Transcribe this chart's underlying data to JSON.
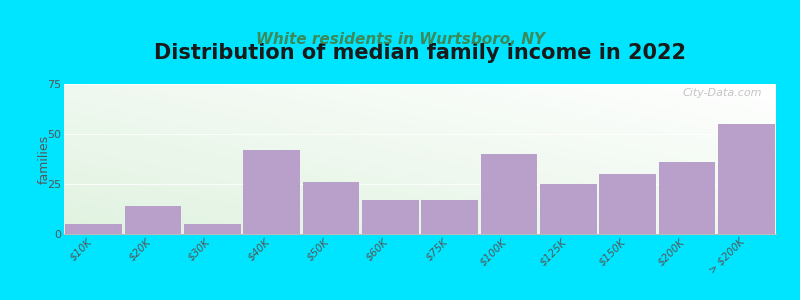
{
  "title": "Distribution of median family income in 2022",
  "subtitle": "White residents in Wurtsboro, NY",
  "ylabel": "families",
  "categories": [
    "$10K",
    "$20K",
    "$30K",
    "$40K",
    "$50K",
    "$60K",
    "$75K",
    "$100K",
    "$125K",
    "$150K",
    "$200K",
    "> $200K"
  ],
  "values": [
    5,
    14,
    5,
    42,
    26,
    17,
    17,
    40,
    25,
    30,
    36,
    55
  ],
  "bar_color": "#b8a0cb",
  "ylim": [
    0,
    75
  ],
  "yticks": [
    0,
    25,
    50,
    75
  ],
  "bg_color_top": "#f5faf0",
  "bg_color_bottom": "#e0f0e8",
  "outer_background": "#00e5ff",
  "title_fontsize": 15,
  "subtitle_fontsize": 11,
  "subtitle_color": "#3a8a5a",
  "watermark": "City-Data.com"
}
